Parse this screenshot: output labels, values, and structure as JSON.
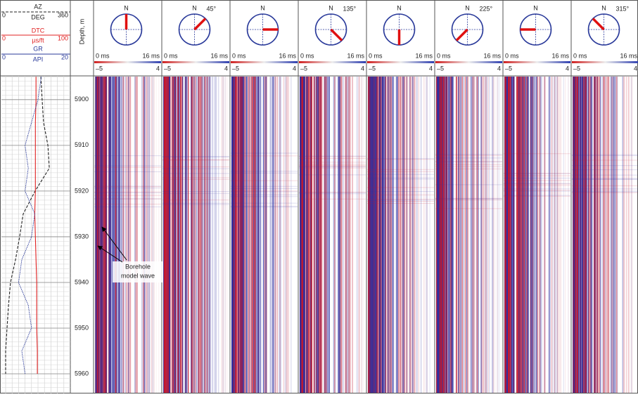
{
  "log_track": {
    "az": {
      "name": "AZ",
      "unit": "DEG",
      "min": 0,
      "max": 360,
      "color": "#222222"
    },
    "dtc": {
      "name": "DTC",
      "unit": "µs/ft",
      "min": 0,
      "max": 100,
      "color": "#e02020"
    },
    "gr": {
      "name": "GR",
      "unit": "API",
      "min": 0,
      "max": 20,
      "color": "#2a3a9a"
    }
  },
  "curves": {
    "depth": [
      5895,
      5900,
      5905,
      5910,
      5915,
      5920,
      5925,
      5930,
      5935,
      5940,
      5945,
      5950,
      5955,
      5960
    ],
    "az": [
      196,
      203,
      211,
      235,
      243,
      164,
      98,
      78,
      55,
      27,
      16,
      8,
      0,
      0
    ],
    "dtc": [
      47,
      47,
      46,
      46,
      46,
      46,
      45,
      46,
      47,
      48,
      48,
      48,
      49,
      49
    ],
    "gr": [
      11,
      10,
      8,
      6,
      7,
      6,
      9,
      8,
      5,
      4,
      7,
      8,
      5,
      6
    ]
  },
  "depth_axis": {
    "label": "Depth, m",
    "lim": [
      5894.8,
      5964.3
    ],
    "ticks": [
      5900,
      5910,
      5920,
      5930,
      5940,
      5950,
      5960
    ]
  },
  "north": "N",
  "time_scale": {
    "start": "0 ms",
    "end": "16 ms"
  },
  "amp_scale": {
    "min": {
      "value": -5,
      "label": "–5"
    },
    "max": 4
  },
  "panels": [
    {
      "azimuth": 0
    },
    {
      "azimuth": {
        "value": 45,
        "label": "45°"
      }
    },
    {
      "azimuth": 90
    },
    {
      "azimuth": {
        "value": 135,
        "label": "135°"
      }
    },
    {
      "azimuth": 180
    },
    {
      "azimuth": {
        "value": 225,
        "label": "225°"
      }
    },
    {
      "azimuth": 270
    },
    {
      "azimuth": {
        "value": 315,
        "label": "315°"
      }
    }
  ],
  "annotation": [
    "Borehole",
    "model wave"
  ]
}
